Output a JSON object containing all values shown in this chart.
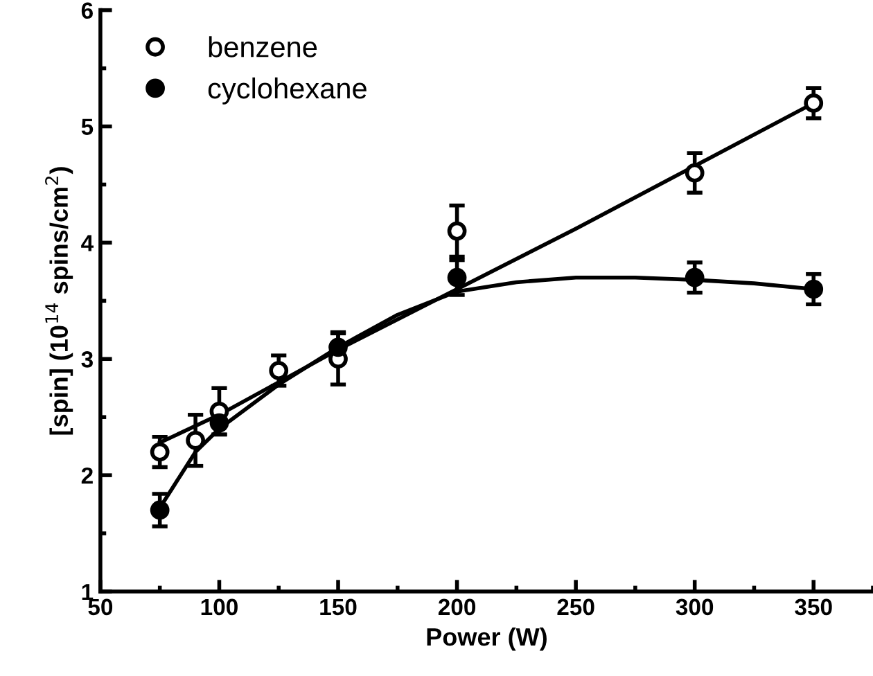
{
  "chart_data": {
    "type": "scatter",
    "xlabel": "Power (W)",
    "ylabel": "[spin] (10$^{14}$ spins/cm$^{2}$)",
    "xlim": [
      50,
      375
    ],
    "ylim": [
      1,
      6
    ],
    "xticks": [
      50,
      100,
      150,
      200,
      250,
      300,
      350
    ],
    "yticks": [
      1,
      2,
      3,
      4,
      5,
      6
    ],
    "grid": false,
    "legend": "top left",
    "marker": "circle",
    "series": [
      {
        "name": "benzene",
        "color": "#000000",
        "x": [
          75,
          90,
          100,
          125,
          150,
          200,
          300,
          350
        ],
        "values": [
          2.2,
          2.3,
          2.55,
          2.9,
          3.0,
          4.1,
          4.6,
          5.2
        ],
        "errors": [
          0.13,
          0.22,
          0.2,
          0.13,
          0.22,
          0.22,
          0.17,
          0.13
        ]
      },
      {
        "name": "cyclohexane",
        "color": "#000000",
        "x": [
          75,
          100,
          150,
          200,
          300,
          350
        ],
        "values": [
          1.7,
          2.45,
          3.1,
          3.7,
          3.7,
          3.6
        ],
        "errors": [
          0.14,
          0.1,
          0.13,
          0.15,
          0.13,
          0.13
        ]
      },
      {
        "type": "line",
        "marker": "none",
        "color": "#000000",
        "x": [
          75,
          100,
          125,
          150,
          200,
          250,
          300,
          350
        ],
        "values": [
          2.28,
          2.52,
          2.8,
          3.08,
          3.6,
          4.12,
          4.66,
          5.2
        ]
      },
      {
        "type": "line",
        "marker": "none",
        "color": "#000000",
        "x": [
          75,
          90,
          100,
          125,
          150,
          175,
          200,
          225,
          250,
          275,
          300,
          325,
          350
        ],
        "values": [
          1.72,
          2.2,
          2.4,
          2.78,
          3.1,
          3.38,
          3.58,
          3.66,
          3.7,
          3.7,
          3.68,
          3.65,
          3.6
        ]
      }
    ]
  }
}
